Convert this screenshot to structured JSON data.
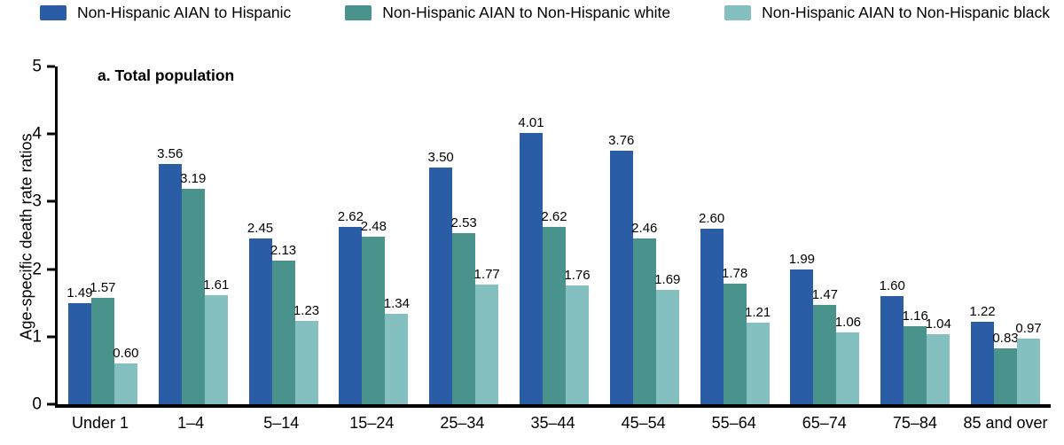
{
  "chart_data": {
    "type": "bar",
    "title": "a. Total population",
    "ylabel": "Age-specific death rate ratios",
    "ylim": [
      0,
      5
    ],
    "yticks": [
      0,
      1,
      2,
      3,
      4,
      5
    ],
    "grid": false,
    "legend_position": "top",
    "value_label_decimals": 2,
    "categories": [
      "Under 1",
      "1–4",
      "5–14",
      "15–24",
      "25–34",
      "35–44",
      "45–54",
      "55–64",
      "65–74",
      "75–84",
      "85 and over"
    ],
    "series": [
      {
        "name": "Non-Hispanic AIAN to Hispanic",
        "color": "#2B5DA6",
        "values": [
          1.49,
          3.56,
          2.45,
          2.62,
          3.5,
          4.01,
          3.76,
          2.6,
          1.99,
          1.6,
          1.22
        ]
      },
      {
        "name": "Non-Hispanic AIAN to Non-Hispanic white",
        "color": "#4A938C",
        "values": [
          1.57,
          3.19,
          2.13,
          2.48,
          2.53,
          2.62,
          2.46,
          1.78,
          1.47,
          1.16,
          0.83
        ]
      },
      {
        "name": "Non-Hispanic AIAN to Non-Hispanic black",
        "color": "#85C0C0",
        "values": [
          0.6,
          1.61,
          1.23,
          1.34,
          1.77,
          1.76,
          1.69,
          1.21,
          1.06,
          1.04,
          0.97
        ]
      }
    ]
  }
}
